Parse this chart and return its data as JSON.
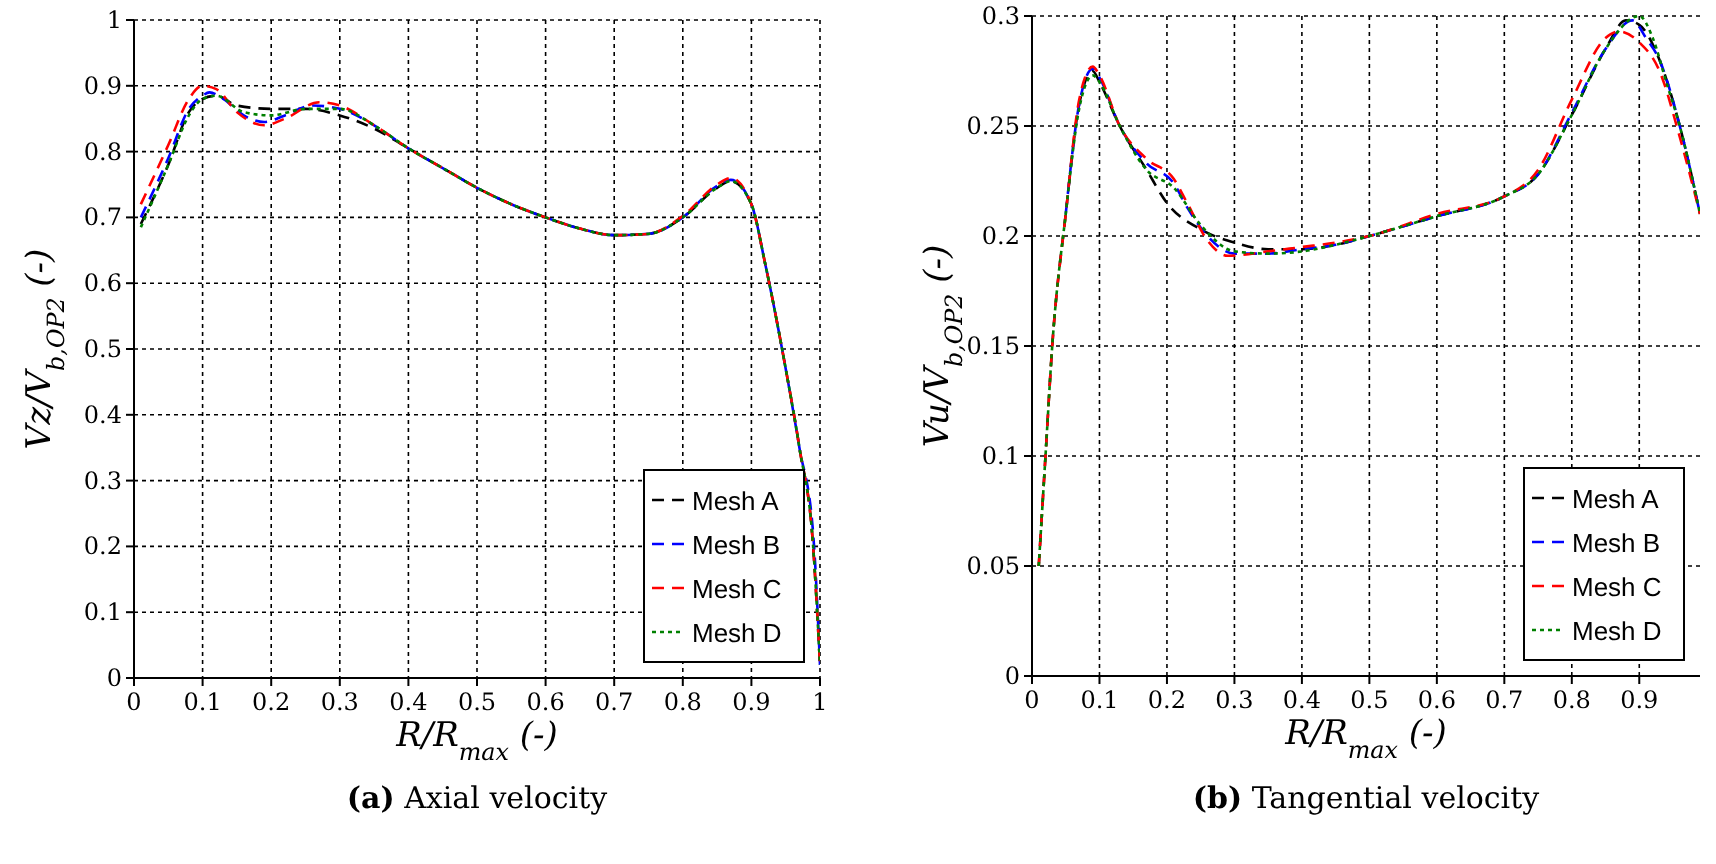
{
  "chart_data": [
    {
      "type": "line",
      "title": "(a) Axial velocity",
      "xlabel": "R/R$_{max}$ (-)",
      "ylabel": "Vz/V$_{b,OP2}$ (-)",
      "xlim": [
        0,
        1
      ],
      "ylim": [
        0,
        1
      ],
      "xticks": [
        0,
        0.1,
        0.2,
        0.3,
        0.4,
        0.5,
        0.6,
        0.7,
        0.8,
        0.9,
        1
      ],
      "yticks": [
        0,
        0.1,
        0.2,
        0.3,
        0.4,
        0.5,
        0.6,
        0.7,
        0.8,
        0.9,
        1
      ],
      "grid": true,
      "legend": "bottom right",
      "series": [
        {
          "name": "Mesh A",
          "color": "#000000",
          "line_style": "dashed",
          "x": [
            0.01,
            0.05,
            0.08,
            0.1,
            0.12,
            0.15,
            0.2,
            0.25,
            0.3,
            0.35,
            0.4,
            0.45,
            0.5,
            0.55,
            0.6,
            0.65,
            0.7,
            0.75,
            0.8,
            0.85,
            0.87,
            0.9,
            0.92,
            0.95,
            0.97,
            0.99,
            1.0
          ],
          "values": [
            0.69,
            0.78,
            0.86,
            0.88,
            0.885,
            0.87,
            0.865,
            0.865,
            0.855,
            0.835,
            0.805,
            0.775,
            0.745,
            0.72,
            0.7,
            0.683,
            0.673,
            0.675,
            0.7,
            0.745,
            0.755,
            0.72,
            0.63,
            0.47,
            0.35,
            0.2,
            0.02
          ]
        },
        {
          "name": "Mesh B",
          "color": "#0000ff",
          "line_style": "dashed",
          "x": [
            0.01,
            0.05,
            0.08,
            0.1,
            0.11,
            0.13,
            0.16,
            0.19,
            0.22,
            0.26,
            0.3,
            0.35,
            0.4,
            0.45,
            0.5,
            0.55,
            0.6,
            0.65,
            0.7,
            0.75,
            0.8,
            0.85,
            0.87,
            0.9,
            0.92,
            0.95,
            0.97,
            0.99,
            1.0
          ],
          "values": [
            0.7,
            0.79,
            0.865,
            0.885,
            0.89,
            0.88,
            0.855,
            0.845,
            0.855,
            0.87,
            0.865,
            0.84,
            0.805,
            0.775,
            0.745,
            0.72,
            0.7,
            0.683,
            0.673,
            0.675,
            0.7,
            0.748,
            0.757,
            0.72,
            0.63,
            0.47,
            0.35,
            0.22,
            0.02
          ]
        },
        {
          "name": "Mesh C",
          "color": "#ff0000",
          "line_style": "dashed",
          "x": [
            0.01,
            0.05,
            0.08,
            0.1,
            0.12,
            0.15,
            0.19,
            0.22,
            0.27,
            0.3,
            0.35,
            0.4,
            0.45,
            0.5,
            0.55,
            0.6,
            0.65,
            0.7,
            0.75,
            0.8,
            0.85,
            0.87,
            0.9,
            0.92,
            0.95,
            0.97,
            0.99,
            1.0
          ],
          "values": [
            0.72,
            0.81,
            0.88,
            0.9,
            0.895,
            0.86,
            0.84,
            0.85,
            0.875,
            0.87,
            0.84,
            0.805,
            0.775,
            0.745,
            0.72,
            0.7,
            0.683,
            0.673,
            0.675,
            0.702,
            0.75,
            0.76,
            0.72,
            0.63,
            0.47,
            0.35,
            0.2,
            0.02
          ]
        },
        {
          "name": "Mesh D",
          "color": "#008000",
          "line_style": "dotted",
          "x": [
            0.01,
            0.05,
            0.08,
            0.1,
            0.12,
            0.16,
            0.2,
            0.25,
            0.3,
            0.35,
            0.4,
            0.45,
            0.5,
            0.55,
            0.6,
            0.65,
            0.7,
            0.75,
            0.8,
            0.85,
            0.87,
            0.9,
            0.92,
            0.95,
            0.97,
            0.99,
            1.0
          ],
          "values": [
            0.685,
            0.78,
            0.855,
            0.88,
            0.885,
            0.86,
            0.855,
            0.865,
            0.865,
            0.84,
            0.805,
            0.775,
            0.745,
            0.72,
            0.7,
            0.683,
            0.673,
            0.675,
            0.7,
            0.745,
            0.755,
            0.72,
            0.63,
            0.47,
            0.35,
            0.2,
            0.02
          ]
        }
      ]
    },
    {
      "type": "line",
      "title": "(b) Tangential velocity",
      "xlabel": "R/R$_{max}$ (-)",
      "ylabel": "Vu/V$_{b,OP2}$ (-)",
      "xlim": [
        0,
        0.99
      ],
      "ylim": [
        0,
        0.3
      ],
      "xticks": [
        0,
        0.1,
        0.2,
        0.3,
        0.4,
        0.5,
        0.6,
        0.7,
        0.8,
        0.9
      ],
      "yticks": [
        0,
        0.05,
        0.1,
        0.15,
        0.2,
        0.25,
        0.3
      ],
      "grid": true,
      "legend": "bottom right",
      "series": [
        {
          "name": "Mesh A",
          "color": "#000000",
          "line_style": "dashed",
          "x": [
            0.01,
            0.02,
            0.03,
            0.05,
            0.07,
            0.09,
            0.1,
            0.13,
            0.17,
            0.2,
            0.25,
            0.3,
            0.35,
            0.4,
            0.45,
            0.5,
            0.6,
            0.7,
            0.75,
            0.8,
            0.85,
            0.88,
            0.9,
            0.93,
            0.96,
            0.99
          ],
          "values": [
            0.05,
            0.1,
            0.15,
            0.21,
            0.26,
            0.275,
            0.27,
            0.25,
            0.23,
            0.215,
            0.203,
            0.197,
            0.194,
            0.194,
            0.196,
            0.2,
            0.209,
            0.218,
            0.228,
            0.255,
            0.285,
            0.298,
            0.296,
            0.28,
            0.25,
            0.21
          ]
        },
        {
          "name": "Mesh B",
          "color": "#0000ff",
          "line_style": "dashed",
          "x": [
            0.05,
            0.07,
            0.09,
            0.1,
            0.13,
            0.17,
            0.21,
            0.23,
            0.26,
            0.3,
            0.35,
            0.4,
            0.45,
            0.5,
            0.6,
            0.7,
            0.75,
            0.8,
            0.85,
            0.89,
            0.91,
            0.93,
            0.96,
            0.99
          ],
          "values": [
            0.21,
            0.26,
            0.276,
            0.272,
            0.25,
            0.233,
            0.224,
            0.213,
            0.2,
            0.192,
            0.192,
            0.194,
            0.196,
            0.2,
            0.209,
            0.218,
            0.228,
            0.256,
            0.285,
            0.298,
            0.29,
            0.28,
            0.25,
            0.21
          ]
        },
        {
          "name": "Mesh C",
          "color": "#ff0000",
          "line_style": "dashed",
          "x": [
            0.01,
            0.02,
            0.03,
            0.05,
            0.07,
            0.09,
            0.1,
            0.13,
            0.17,
            0.21,
            0.23,
            0.26,
            0.29,
            0.35,
            0.4,
            0.45,
            0.5,
            0.6,
            0.7,
            0.75,
            0.8,
            0.85,
            0.87,
            0.9,
            0.93,
            0.96,
            0.99
          ],
          "values": [
            0.05,
            0.1,
            0.15,
            0.21,
            0.262,
            0.277,
            0.273,
            0.25,
            0.235,
            0.226,
            0.215,
            0.198,
            0.191,
            0.193,
            0.195,
            0.197,
            0.2,
            0.21,
            0.218,
            0.23,
            0.262,
            0.29,
            0.293,
            0.288,
            0.275,
            0.245,
            0.21
          ]
        },
        {
          "name": "Mesh D",
          "color": "#008000",
          "line_style": "dotted",
          "x": [
            0.01,
            0.02,
            0.03,
            0.05,
            0.07,
            0.09,
            0.1,
            0.13,
            0.17,
            0.21,
            0.25,
            0.3,
            0.35,
            0.4,
            0.45,
            0.5,
            0.6,
            0.7,
            0.75,
            0.8,
            0.85,
            0.9,
            0.92,
            0.94,
            0.96,
            0.99
          ],
          "values": [
            0.05,
            0.1,
            0.15,
            0.21,
            0.258,
            0.273,
            0.27,
            0.25,
            0.23,
            0.222,
            0.205,
            0.193,
            0.192,
            0.193,
            0.196,
            0.2,
            0.209,
            0.218,
            0.228,
            0.255,
            0.285,
            0.3,
            0.29,
            0.27,
            0.25,
            0.21
          ]
        }
      ]
    }
  ]
}
